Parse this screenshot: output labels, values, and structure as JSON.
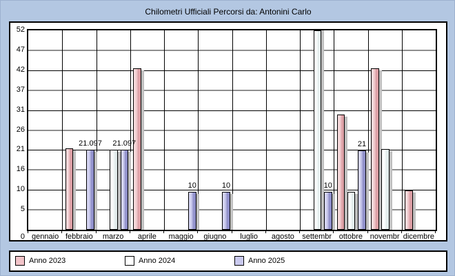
{
  "title": "Chilometri Ufficiali Percorsi da: Antonini Carlo",
  "colors": {
    "page_background": "#b3c7e2",
    "plot_background": "#ffffff",
    "gridline_major": "#000000",
    "gridline_minor": "#8f8f8f",
    "bar_shadow": "#c0c0c0"
  },
  "chart_data": {
    "type": "bar",
    "title": "Chilometri Ufficiali Percorsi da: Antonini Carlo",
    "categories": [
      "gennaio",
      "febbraio",
      "marzo",
      "aprile",
      "maggio",
      "giugno",
      "luglio",
      "agosto",
      "settembr",
      "ottobre",
      "novembr",
      "dicembre"
    ],
    "series": [
      {
        "name": "Anno 2023",
        "color": "#dc9fa5",
        "color_light": "#f6d8da",
        "values": [
          null,
          21.5,
          null,
          42.7,
          null,
          null,
          null,
          null,
          null,
          30.5,
          42.7,
          10.4
        ],
        "data_labels": [
          "",
          "",
          "",
          "",
          "",
          "",
          "",
          "",
          "",
          "",
          "",
          ""
        ]
      },
      {
        "name": "Anno 2024",
        "color": "#e2ecec",
        "color_light": "#ffffff",
        "values": [
          null,
          null,
          21.2,
          null,
          null,
          null,
          null,
          null,
          55,
          10,
          21.4,
          null
        ],
        "data_labels": [
          "",
          "",
          "",
          "",
          "",
          "",
          "",
          "",
          "",
          "",
          "",
          ""
        ],
        "note": "settembr bar exceeds the y-axis maximum and is clipped at the plot top"
      },
      {
        "name": "Anno 2025",
        "color": "#8f8fca",
        "color_light": "#d4d4f2",
        "values": [
          null,
          21.097,
          21.097,
          null,
          10,
          10,
          null,
          null,
          10,
          21,
          null,
          null
        ],
        "data_labels": [
          "",
          "21.097",
          "21.097",
          "",
          "10",
          "10",
          "",
          "",
          "10",
          "21",
          "",
          ""
        ]
      }
    ],
    "ylabel": "",
    "xlabel": "",
    "y_max": 52.742,
    "y_ticks": [
      "52",
      "47",
      "42",
      "37",
      "31",
      "26",
      "21",
      "16",
      "10",
      "5",
      "0"
    ],
    "grid": true,
    "legend_position": "bottom"
  },
  "legend": {
    "items": [
      {
        "label": "Anno 2023",
        "swatch_color": "#f1c3c8"
      },
      {
        "label": "Anno 2024",
        "swatch_color": "#ffffff"
      },
      {
        "label": "Anno 2025",
        "swatch_color": "#c9c9ee"
      }
    ]
  }
}
